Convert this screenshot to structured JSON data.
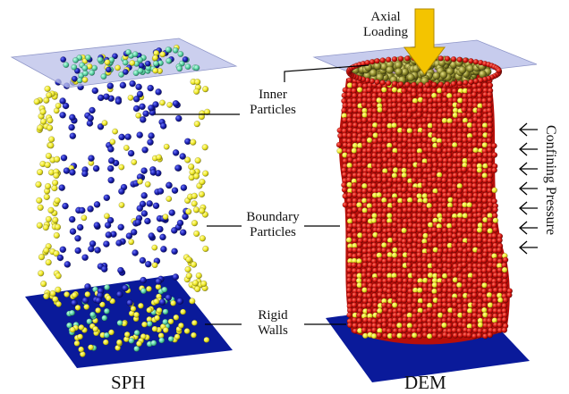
{
  "labels": {
    "axial_loading_line1": "Axial",
    "axial_loading_line2": "Loading",
    "inner_particles_line1": "Inner",
    "inner_particles_line2": "Particles",
    "boundary_particles_line1": "Boundary",
    "boundary_particles_line2": "Particles",
    "rigid_walls_line1": "Rigid",
    "rigid_walls_line2": "Walls",
    "confining_pressure": "Confining Pressure"
  },
  "captions": {
    "left": "SPH",
    "right": "DEM"
  },
  "colors": {
    "wall_plate": "#0a1a9a",
    "top_plate": "#b9bfe8",
    "boundary_particle": "#f2ec2a",
    "inner_particle": "#1a1fb0",
    "wall_particle": "#5fd6a8",
    "dem_particle": "#d8140f",
    "dem_top_particle": "#8d8a2a",
    "arrow": "#f4c400"
  }
}
